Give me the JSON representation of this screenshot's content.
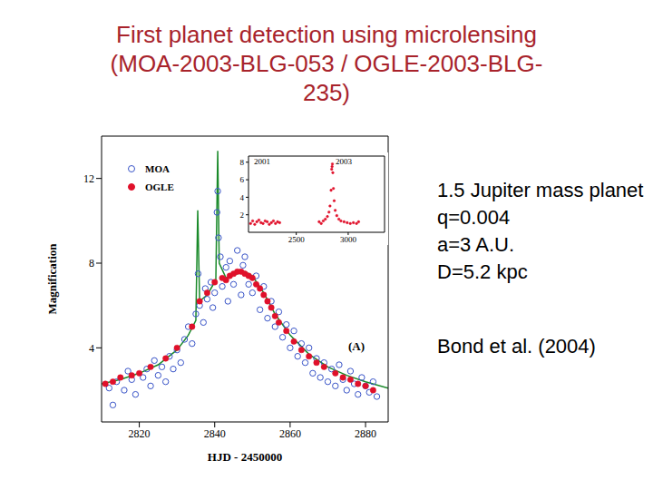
{
  "slide": {
    "title": [
      "First planet detection using microlensing",
      "(MOA-2003-BLG-053 / OGLE-2003-BLG-",
      "235)"
    ],
    "notes": [
      "1.5 Jupiter mass planet",
      "q=0.004",
      "a=3 A.U.",
      "D=5.2 kpc"
    ],
    "citation": "Bond et al. (2004)"
  },
  "chart_data": [
    {
      "type": "scatter",
      "x_label": "HJD - 2450000",
      "y_label": "Magnification",
      "xlim": [
        2810,
        2886
      ],
      "xticks": [
        2820,
        2840,
        2860,
        2880
      ],
      "ylim": [
        0.5,
        14
      ],
      "yticks": [
        4,
        8,
        12
      ],
      "legend": "upper left",
      "annotations": [
        "(A)"
      ],
      "series": [
        {
          "name": "MOA",
          "color": "#3a55c8",
          "marker": "open_circle",
          "x": [
            2812,
            2813,
            2814,
            2816,
            2817,
            2818,
            2819,
            2821,
            2822,
            2823,
            2824,
            2825,
            2826,
            2827,
            2828,
            2829,
            2830,
            2831,
            2832,
            2833,
            2834,
            2835,
            2835.6,
            2836,
            2837,
            2837.5,
            2838,
            2839,
            2839.5,
            2840,
            2840.6,
            2840.8,
            2841,
            2841.5,
            2842,
            2843,
            2843.5,
            2844,
            2845,
            2846,
            2847,
            2847.5,
            2848,
            2849,
            2850,
            2851,
            2852,
            2853,
            2854,
            2855,
            2856,
            2857,
            2858,
            2859,
            2860,
            2861,
            2862,
            2863,
            2864,
            2865,
            2866,
            2867,
            2868,
            2869,
            2870,
            2871,
            2872,
            2873,
            2874,
            2875,
            2876,
            2877,
            2878,
            2879,
            2880,
            2881,
            2882,
            2883
          ],
          "values": [
            2.1,
            1.3,
            2.4,
            2.0,
            2.9,
            2.5,
            1.8,
            2.6,
            3.0,
            2.2,
            3.4,
            2.7,
            3.1,
            2.4,
            3.6,
            3.0,
            3.9,
            3.3,
            4.4,
            5.0,
            4.2,
            5.6,
            7.5,
            6.0,
            5.2,
            6.8,
            6.3,
            7.1,
            5.9,
            6.6,
            10.4,
            11.4,
            9.2,
            8.3,
            6.9,
            7.8,
            6.2,
            8.1,
            7.0,
            8.6,
            6.5,
            7.9,
            8.3,
            7.0,
            6.6,
            7.4,
            5.8,
            6.9,
            5.4,
            6.2,
            5.0,
            5.7,
            4.5,
            5.1,
            4.0,
            4.8,
            3.6,
            4.2,
            3.3,
            4.0,
            2.8,
            3.5,
            2.6,
            3.3,
            2.4,
            3.0,
            2.2,
            3.2,
            2.5,
            2.0,
            2.9,
            2.3,
            1.8,
            2.6,
            2.2,
            1.9,
            2.4,
            1.7
          ]
        },
        {
          "name": "OGLE",
          "color": "#e0102a",
          "marker": "circle",
          "x": [
            2811,
            2813,
            2815,
            2818,
            2820,
            2823,
            2827,
            2830,
            2834,
            2836,
            2838,
            2840,
            2842,
            2843,
            2844,
            2845,
            2846,
            2847,
            2848,
            2849,
            2850,
            2851,
            2852,
            2853,
            2854,
            2855,
            2856,
            2857,
            2859,
            2861,
            2863,
            2865,
            2867,
            2869,
            2872,
            2874,
            2876,
            2878,
            2880,
            2882
          ],
          "values": [
            2.3,
            2.4,
            2.6,
            2.7,
            2.8,
            3.1,
            3.5,
            4.0,
            5.0,
            6.2,
            6.6,
            7.1,
            7.3,
            7.2,
            7.4,
            7.5,
            7.6,
            7.6,
            7.5,
            7.4,
            7.3,
            7.0,
            6.8,
            6.5,
            6.2,
            5.9,
            5.5,
            5.2,
            4.8,
            4.3,
            3.9,
            3.6,
            3.3,
            3.1,
            2.8,
            2.6,
            2.5,
            2.3,
            2.2,
            2.0
          ]
        },
        {
          "type": "line",
          "color": "#1a8a2a",
          "line_style": "solid",
          "x": [
            2810,
            2815,
            2820,
            2825,
            2830,
            2833,
            2835,
            2835.5,
            2836,
            2838,
            2839,
            2840.3,
            2840.8,
            2841.2,
            2843,
            2846,
            2848,
            2850,
            2853,
            2856,
            2860,
            2865,
            2870,
            2875,
            2880,
            2886
          ],
          "values": [
            2.3,
            2.5,
            2.8,
            3.2,
            3.9,
            4.6,
            5.3,
            10.5,
            6.2,
            6.5,
            6.8,
            7.2,
            13.3,
            8.0,
            7.3,
            7.5,
            7.6,
            7.4,
            6.6,
            5.6,
            4.6,
            3.7,
            3.1,
            2.7,
            2.4,
            2.1
          ]
        }
      ]
    },
    {
      "type": "scatter",
      "xlim": [
        2040,
        3350
      ],
      "xticks": [
        2500,
        3000
      ],
      "ylim": [
        0,
        8.7
      ],
      "yticks": [
        2,
        4,
        6,
        8
      ],
      "annotations": [
        "2001",
        "2003"
      ],
      "series": [
        {
          "color": "#e0102a",
          "marker": "circle",
          "x": [
            2060,
            2080,
            2100,
            2120,
            2140,
            2160,
            2180,
            2200,
            2220,
            2240,
            2260,
            2280,
            2300,
            2320,
            2340,
            2720,
            2740,
            2760,
            2780,
            2800,
            2815,
            2825,
            2835,
            2841,
            2845,
            2848,
            2852,
            2858,
            2865,
            2875,
            2890,
            2910,
            2930,
            2960,
            2990,
            3020,
            3050,
            3080,
            3100
          ],
          "values": [
            1.0,
            1.3,
            0.9,
            1.2,
            1.4,
            1.1,
            1.0,
            1.3,
            1.2,
            0.9,
            1.1,
            1.3,
            1.0,
            1.2,
            1.1,
            1.2,
            1.0,
            1.3,
            1.5,
            1.8,
            2.3,
            3.0,
            4.8,
            7.2,
            7.5,
            7.8,
            6.8,
            5.0,
            3.6,
            2.5,
            1.9,
            1.5,
            1.3,
            1.2,
            1.1,
            1.0,
            1.1,
            1.0,
            1.2
          ]
        }
      ]
    }
  ]
}
